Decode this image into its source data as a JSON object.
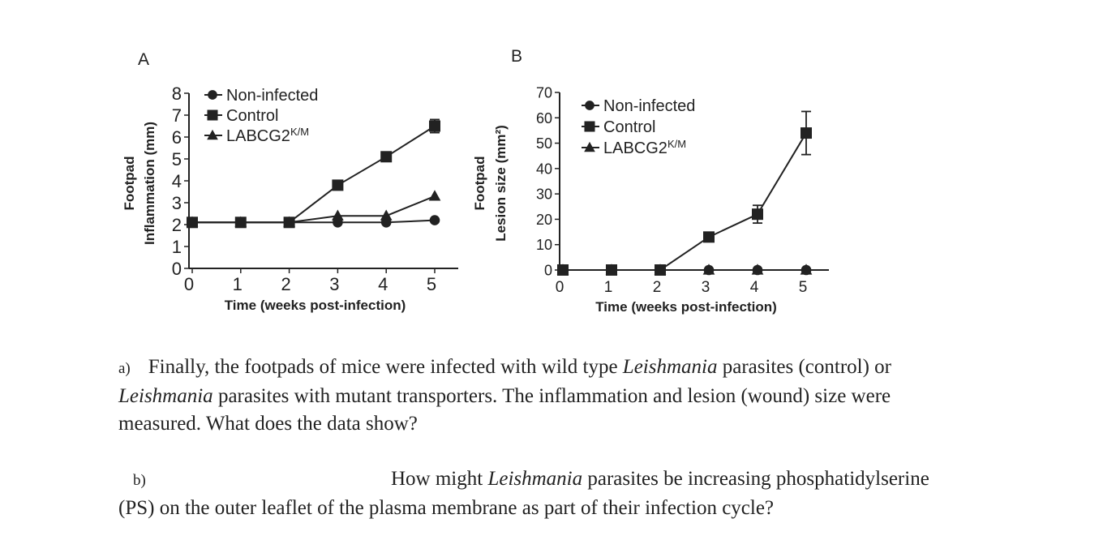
{
  "chart_data": [
    {
      "panel": "A",
      "type": "line",
      "ylabel": [
        "Footpad",
        "Inflammation (mm)"
      ],
      "xlabel": "Time (weeks post-infection)",
      "x": [
        0,
        1,
        2,
        3,
        4,
        5
      ],
      "xticks": [
        "0",
        "1",
        "2",
        "3",
        "4",
        "5"
      ],
      "yticks": [
        "0",
        "1",
        "2",
        "3",
        "4",
        "5",
        "6",
        "7",
        "8"
      ],
      "ylim": [
        0,
        8
      ],
      "xlim": [
        0,
        5
      ],
      "legend_position": "top-left",
      "series": [
        {
          "name": "Non-infected",
          "marker": "circle",
          "values": [
            2.1,
            2.1,
            2.1,
            2.1,
            2.1,
            2.2
          ]
        },
        {
          "name": "Control",
          "marker": "square",
          "values": [
            2.1,
            2.1,
            2.1,
            3.8,
            5.1,
            6.5
          ],
          "error": [
            0,
            0,
            0,
            0,
            0,
            0.3
          ]
        },
        {
          "name": "LABCG2",
          "name_sup": "K/M",
          "marker": "triangle",
          "values": [
            2.1,
            2.1,
            2.1,
            2.4,
            2.4,
            3.3
          ]
        }
      ]
    },
    {
      "panel": "B",
      "type": "line",
      "ylabel": [
        "Footpad",
        "Lesion size (mm²)"
      ],
      "xlabel": "Time (weeks post-infection)",
      "x": [
        0,
        1,
        2,
        3,
        4,
        5
      ],
      "xticks": [
        "0",
        "1",
        "2",
        "3",
        "4",
        "5"
      ],
      "yticks": [
        "0",
        "10",
        "20",
        "30",
        "40",
        "50",
        "60",
        "70"
      ],
      "ylim": [
        0,
        70
      ],
      "xlim": [
        0,
        5
      ],
      "legend_position": "top-left",
      "series": [
        {
          "name": "Non-infected",
          "marker": "circle",
          "values": [
            0,
            0,
            0,
            0,
            0,
            0
          ]
        },
        {
          "name": "Control",
          "marker": "square",
          "values": [
            0,
            0,
            0,
            13,
            22,
            54
          ],
          "error": [
            0,
            0,
            0,
            0,
            3.5,
            8.5
          ]
        },
        {
          "name": "LABCG2",
          "name_sup": "K/M",
          "marker": "triangle",
          "values": [
            0,
            0,
            0,
            0,
            0,
            0
          ]
        }
      ]
    }
  ],
  "questions": {
    "a_label": "a)",
    "a_line1_pre": "Finally, the footpads of mice were infected with wild type ",
    "a_line1_italic": "Leishmania",
    "a_line1_post": " parasites (control) or",
    "a_line2_italic": "Leishmania",
    "a_line2_post": " parasites with mutant transporters.  The inflammation and lesion (wound) size were",
    "a_line3": "measured.  What does the data show?",
    "b_label": "b)",
    "b_line1_pre": "How might ",
    "b_line1_italic": "Leishmania",
    "b_line1_post": " parasites be increasing phosphatidylserine",
    "b_line2": "(PS) on the outer leaflet of the plasma membrane as part of their infection cycle?"
  },
  "colors": {
    "ink": "#222222",
    "background": "#ffffff"
  }
}
